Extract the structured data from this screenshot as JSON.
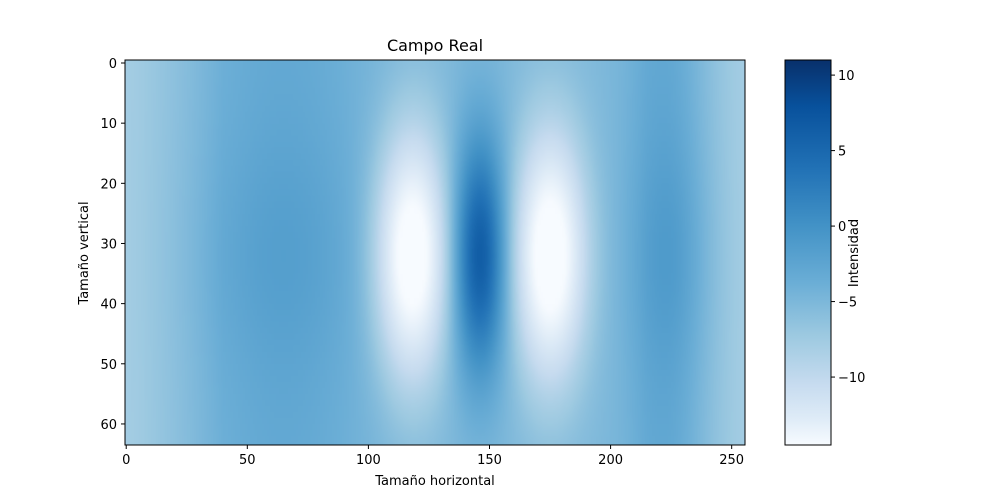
{
  "chart_data": {
    "type": "heatmap",
    "title": "Campo Real",
    "xlabel": "Tamaño horizontal",
    "ylabel": "Tamaño vertical",
    "colorbar_label": "Intensidad",
    "colormap": "Blues",
    "xlim": [
      -0.5,
      255.5
    ],
    "ylim": [
      63.5,
      -0.5
    ],
    "x_ticks": [
      0,
      50,
      100,
      150,
      200,
      250
    ],
    "y_ticks": [
      0,
      10,
      20,
      30,
      40,
      50,
      60
    ],
    "clim": [
      -14.5,
      11
    ],
    "colorbar_ticks": [
      10,
      5,
      0,
      -5,
      -10
    ],
    "colorbar_tick_labels": [
      "10",
      "5",
      "0",
      "−5",
      "−10"
    ],
    "grid": false,
    "field_model": {
      "vertical_center": 32,
      "vertical_sigma": 14,
      "components": [
        {
          "x_center": 118,
          "x_sigma": 10,
          "amplitude": -14
        },
        {
          "x_center": 146,
          "x_sigma": 8,
          "amplitude": 10
        },
        {
          "x_center": 175,
          "x_sigma": 10,
          "amplitude": -14
        },
        {
          "x_center": 65,
          "x_sigma": 25,
          "amplitude": 3
        },
        {
          "x_center": 225,
          "x_sigma": 12,
          "amplitude": 4
        }
      ],
      "baseline": -3
    }
  }
}
